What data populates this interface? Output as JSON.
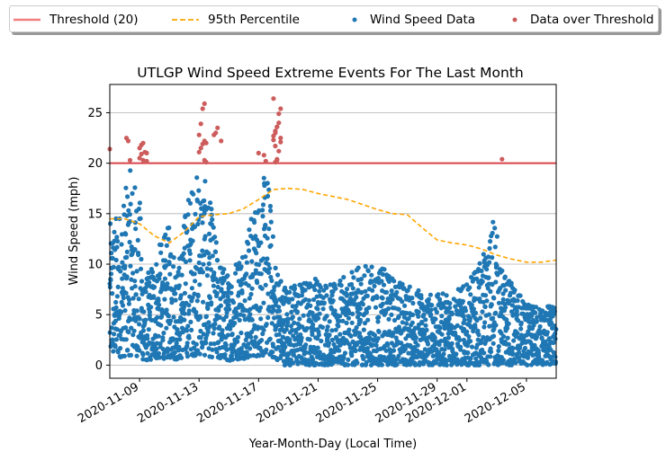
{
  "chart_data": {
    "type": "scatter",
    "title": "UTLGP Wind Speed Extreme Events For The Last Month",
    "xlabel": "Year-Month-Day (Local Time)",
    "ylabel": "Wind Speed (mph)",
    "x_range": [
      "2020-11-07",
      "2020-12-07"
    ],
    "ylim": [
      -1.3,
      27.8
    ],
    "grid": "horizontal",
    "legend_position": "top",
    "x_ticks": [
      "2020-11-09",
      "2020-11-13",
      "2020-11-17",
      "2020-11-21",
      "2020-11-25",
      "2020-11-29",
      "2020-12-01",
      "2020-12-05"
    ],
    "y_ticks": [
      0,
      5,
      10,
      15,
      20,
      25
    ],
    "legend": [
      "Threshold (20)",
      "95th Percentile",
      "Wind Speed Data",
      "Data over Threshold"
    ],
    "threshold": 20,
    "colors": {
      "threshold": "#f08080",
      "threshold_line": "#d9434a",
      "percentile": "#ffa500",
      "data": "#1f77b4",
      "over": "#cd5c5c"
    },
    "percentile_95": {
      "x": [
        "2020-11-07",
        "2020-11-08",
        "2020-11-09",
        "2020-11-10",
        "2020-11-11",
        "2020-11-12",
        "2020-11-13",
        "2020-11-14",
        "2020-11-15",
        "2020-11-16",
        "2020-11-17",
        "2020-11-18",
        "2020-11-19",
        "2020-11-20",
        "2020-11-21",
        "2020-11-22",
        "2020-11-23",
        "2020-11-24",
        "2020-11-25",
        "2020-11-26",
        "2020-11-27",
        "2020-11-28",
        "2020-11-29",
        "2020-11-30",
        "2020-12-01",
        "2020-12-02",
        "2020-12-03",
        "2020-12-04",
        "2020-12-05",
        "2020-12-06",
        "2020-12-07"
      ],
      "y": [
        14.5,
        14.5,
        14.0,
        12.8,
        12.1,
        13.2,
        14.7,
        14.9,
        15.0,
        15.5,
        16.4,
        17.4,
        17.5,
        17.4,
        17.0,
        16.7,
        16.4,
        15.9,
        15.4,
        15.0,
        14.9,
        13.6,
        12.4,
        12.1,
        11.9,
        11.5,
        10.9,
        10.5,
        10.2,
        10.2,
        10.4
      ]
    },
    "data_over_threshold": {
      "x": [
        "2020-11-07",
        "2020-11-08",
        "2020-11-08",
        "2020-11-08",
        "2020-11-09",
        "2020-11-09",
        "2020-11-09",
        "2020-11-09",
        "2020-11-09",
        "2020-11-09",
        "2020-11-09",
        "2020-11-09",
        "2020-11-09",
        "2020-11-13",
        "2020-11-13",
        "2020-11-13",
        "2020-11-13",
        "2020-11-13",
        "2020-11-13",
        "2020-11-13",
        "2020-11-13",
        "2020-11-13",
        "2020-11-13",
        "2020-11-13",
        "2020-11-14",
        "2020-11-14",
        "2020-11-14",
        "2020-11-14",
        "2020-11-17",
        "2020-11-17",
        "2020-11-17",
        "2020-11-18",
        "2020-11-18",
        "2020-11-18",
        "2020-11-18",
        "2020-11-18",
        "2020-11-18",
        "2020-11-18",
        "2020-11-18",
        "2020-11-18",
        "2020-11-18",
        "2020-11-18",
        "2020-11-18",
        "2020-11-18",
        "2020-11-18",
        "2020-11-18",
        "2020-11-18",
        "2020-11-18",
        "2020-12-03"
      ],
      "y": [
        21.4,
        22.5,
        22.2,
        20.3,
        20.2,
        21.5,
        21.8,
        22.0,
        21.1,
        21.0,
        20.5,
        20.9,
        20.3,
        20.3,
        20.1,
        21.1,
        21.5,
        21.9,
        22.2,
        22.0,
        22.8,
        23.9,
        25.4,
        25.9,
        22.2,
        22.8,
        23.0,
        23.5,
        20.8,
        20.2,
        21.0,
        20.1,
        20.4,
        21.2,
        22.1,
        22.7,
        23.2,
        23.6,
        24.0,
        22.5,
        22.3,
        23.0,
        23.6,
        24.9,
        25.4,
        26.4,
        21.7,
        20.3,
        20.4
      ]
    }
  }
}
